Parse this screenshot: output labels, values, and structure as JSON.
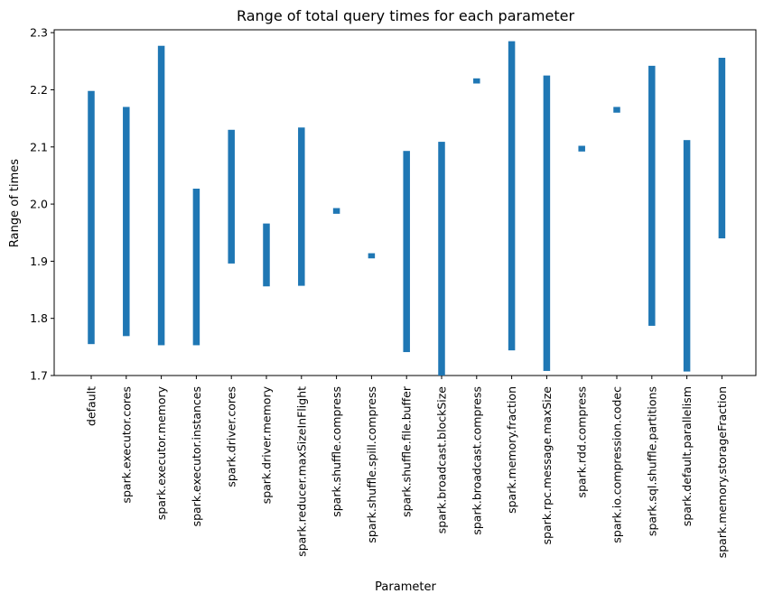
{
  "chart_data": {
    "type": "bar",
    "title": "Range of total query times for each parameter",
    "xlabel": "Parameter",
    "ylabel": "Range of times",
    "ylim": [
      1.7,
      2.305
    ],
    "yticks": [
      1.7,
      1.8,
      1.9,
      2.0,
      2.1,
      2.2,
      2.3
    ],
    "ytick_labels": [
      "1.7",
      "1.8",
      "1.9",
      "2.0",
      "2.1",
      "2.2",
      "2.3"
    ],
    "bar_color": "#1f77b4",
    "grid": false,
    "categories": [
      "default",
      "spark.executor.cores",
      "spark.executor.memory",
      "spark.executor.instances",
      "spark.driver.cores",
      "spark.driver.memory",
      "spark.reducer.maxSizeInFlight",
      "spark.shuffle.compress",
      "spark.shuffle.spill.compress",
      "spark.shuffle.file.buffer",
      "spark.broadcast.blockSize",
      "spark.broadcast.compress",
      "spark.memory.fraction",
      "spark.rpc.message.maxSize",
      "spark.rdd.compress",
      "spark.io.compression.codec",
      "spark.sql.shuffle.partitions",
      "spark.default.parallelism",
      "spark.memory.storageFraction"
    ],
    "series": [
      {
        "low": [
          1.755,
          1.769,
          1.753,
          1.753,
          1.896,
          1.856,
          1.857,
          1.983,
          1.905,
          1.741,
          1.7,
          2.211,
          1.744,
          1.708,
          2.092,
          2.16,
          1.787,
          1.707,
          1.94
        ],
        "high": [
          2.198,
          2.17,
          2.277,
          2.027,
          2.13,
          1.966,
          2.134,
          1.993,
          1.914,
          2.093,
          2.109,
          2.22,
          2.285,
          2.225,
          2.102,
          2.17,
          2.242,
          2.112,
          2.256
        ]
      }
    ]
  }
}
